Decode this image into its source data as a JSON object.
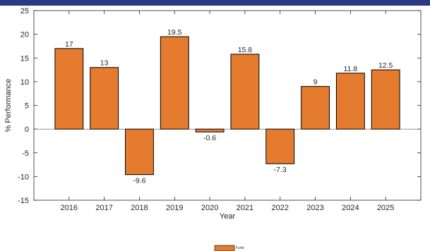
{
  "theme": {
    "band_color": "#2b3a85",
    "bar_color": "#e57b2e",
    "bar_edge": "#000000",
    "axis_color": "#262626"
  },
  "chart_data": {
    "type": "bar",
    "categories": [
      "2016",
      "2017",
      "2018",
      "2019",
      "2020",
      "2021",
      "2022",
      "2023",
      "2024",
      "2025"
    ],
    "series": [
      {
        "name": "Fund",
        "values": [
          17,
          13,
          -9.6,
          19.5,
          -0.6,
          15.8,
          -7.3,
          9,
          11.8,
          12.5
        ]
      }
    ],
    "data_labels": [
      "17",
      "13",
      "-9.6",
      "19.5",
      "-0.6",
      "15.8",
      "-7.3",
      "9",
      "11.8",
      "12.5"
    ],
    "xlabel": "Year",
    "ylabel": "% Performance",
    "ylim": [
      -15,
      25
    ],
    "yticks": [
      -15,
      -10,
      -5,
      0,
      5,
      10,
      15,
      20,
      25
    ],
    "grid": false,
    "legend_position": "bottom-center"
  }
}
